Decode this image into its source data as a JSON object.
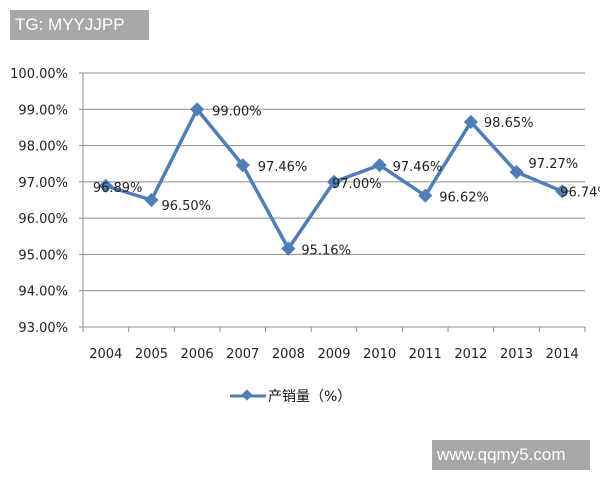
{
  "watermarks": {
    "top": "TG: MYYJJPP",
    "bottom": "www.qqmy5.com"
  },
  "legend": {
    "label": "产销量（%）",
    "icon": "diamond-line-marker-icon"
  },
  "colors": {
    "series": "#4f7db5",
    "grid": "#8c8c8c",
    "watermark_bg": "#a8a8a8"
  },
  "chart_data": {
    "type": "line",
    "title": "",
    "xlabel": "",
    "ylabel": "",
    "categories": [
      "2004",
      "2005",
      "2006",
      "2007",
      "2008",
      "2009",
      "2010",
      "2011",
      "2012",
      "2013",
      "2014"
    ],
    "series": [
      {
        "name": "产销量（%）",
        "values": [
          96.89,
          96.5,
          99.0,
          97.46,
          95.16,
          97.0,
          97.46,
          96.62,
          98.65,
          97.27,
          96.74
        ],
        "labels": [
          "96.89%",
          "96.50%",
          "99.00%",
          "97.46%",
          "95.16%",
          "97.00%",
          "97.46%",
          "96.62%",
          "98.65%",
          "97.27%",
          "96.74%"
        ]
      }
    ],
    "ylim": [
      93,
      100
    ],
    "yticks": [
      "100.00%",
      "99.00%",
      "98.00%",
      "97.00%",
      "96.00%",
      "95.00%",
      "94.00%",
      "93.00%"
    ],
    "grid": true,
    "legend_position": "bottom"
  }
}
